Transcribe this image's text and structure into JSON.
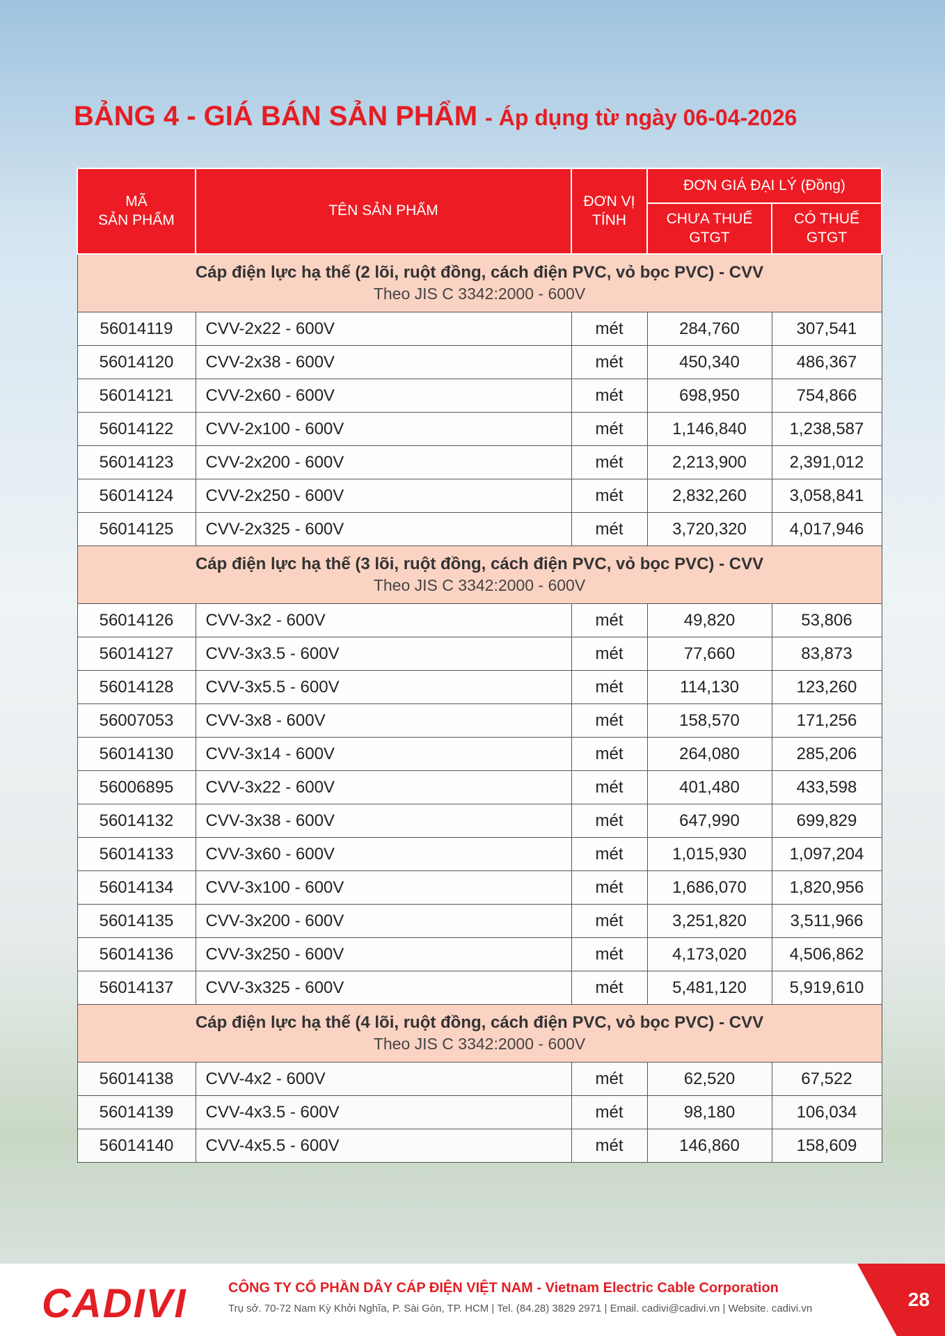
{
  "header": {
    "title": "BẢNG 4 - GIÁ BÁN SẢN PHẨM",
    "subtitle": "- Áp dụng từ ngày 06-04-2026"
  },
  "table": {
    "columns": {
      "code": "MÃ\nSẢN PHẨM",
      "name": "TÊN SẢN PHẨM",
      "unit": "ĐƠN VỊ\nTÍNH",
      "price_group": "ĐƠN GIÁ ĐẠI LÝ (Đồng)",
      "pre_tax": "CHƯA THUẾ\nGTGT",
      "with_tax": "CÓ THUẾ\nGTGT"
    },
    "sections": [
      {
        "title": "Cáp điện lực hạ thế (2 lõi, ruột đồng, cách điện PVC, vỏ bọc PVC) - CVV",
        "subtitle": "Theo JIS C 3342:2000 - 600V",
        "rows": [
          [
            "56014119",
            "CVV-2x22 - 600V",
            "mét",
            "284,760",
            "307,541"
          ],
          [
            "56014120",
            "CVV-2x38 - 600V",
            "mét",
            "450,340",
            "486,367"
          ],
          [
            "56014121",
            "CVV-2x60 - 600V",
            "mét",
            "698,950",
            "754,866"
          ],
          [
            "56014122",
            "CVV-2x100 - 600V",
            "mét",
            "1,146,840",
            "1,238,587"
          ],
          [
            "56014123",
            "CVV-2x200 - 600V",
            "mét",
            "2,213,900",
            "2,391,012"
          ],
          [
            "56014124",
            "CVV-2x250 - 600V",
            "mét",
            "2,832,260",
            "3,058,841"
          ],
          [
            "56014125",
            "CVV-2x325 - 600V",
            "mét",
            "3,720,320",
            "4,017,946"
          ]
        ]
      },
      {
        "title": "Cáp điện lực hạ thế (3 lõi, ruột đồng, cách điện PVC, vỏ bọc PVC) - CVV",
        "subtitle": "Theo JIS C 3342:2000 - 600V",
        "rows": [
          [
            "56014126",
            "CVV-3x2 - 600V",
            "mét",
            "49,820",
            "53,806"
          ],
          [
            "56014127",
            "CVV-3x3.5 - 600V",
            "mét",
            "77,660",
            "83,873"
          ],
          [
            "56014128",
            "CVV-3x5.5 - 600V",
            "mét",
            "114,130",
            "123,260"
          ],
          [
            "56007053",
            "CVV-3x8 - 600V",
            "mét",
            "158,570",
            "171,256"
          ],
          [
            "56014130",
            "CVV-3x14 - 600V",
            "mét",
            "264,080",
            "285,206"
          ],
          [
            "56006895",
            "CVV-3x22 - 600V",
            "mét",
            "401,480",
            "433,598"
          ],
          [
            "56014132",
            "CVV-3x38 - 600V",
            "mét",
            "647,990",
            "699,829"
          ],
          [
            "56014133",
            "CVV-3x60 - 600V",
            "mét",
            "1,015,930",
            "1,097,204"
          ],
          [
            "56014134",
            "CVV-3x100 - 600V",
            "mét",
            "1,686,070",
            "1,820,956"
          ],
          [
            "56014135",
            "CVV-3x200 - 600V",
            "mét",
            "3,251,820",
            "3,511,966"
          ],
          [
            "56014136",
            "CVV-3x250 - 600V",
            "mét",
            "4,173,020",
            "4,506,862"
          ],
          [
            "56014137",
            "CVV-3x325 - 600V",
            "mét",
            "5,481,120",
            "5,919,610"
          ]
        ]
      },
      {
        "title": "Cáp điện lực hạ thế (4 lõi, ruột đồng, cách điện PVC, vỏ bọc PVC) - CVV",
        "subtitle": "Theo JIS C 3342:2000 - 600V",
        "rows": [
          [
            "56014138",
            "CVV-4x2 - 600V",
            "mét",
            "62,520",
            "67,522"
          ],
          [
            "56014139",
            "CVV-4x3.5 - 600V",
            "mét",
            "98,180",
            "106,034"
          ],
          [
            "56014140",
            "CVV-4x5.5 - 600V",
            "mét",
            "146,860",
            "158,609"
          ]
        ]
      }
    ]
  },
  "footer": {
    "brand": "CADIVI",
    "company": "CÔNG TY CỔ PHẦN DÂY CÁP ĐIỆN VIỆT NAM - Vietnam Electric Cable Corporation",
    "address": "Trụ sở. 70-72 Nam Kỳ Khởi Nghĩa, P. Sài Gòn, TP. HCM | Tel. (84.28) 3829 2971 | Email. cadivi@cadivi.vn | Website. cadivi.vn",
    "page": "28"
  }
}
